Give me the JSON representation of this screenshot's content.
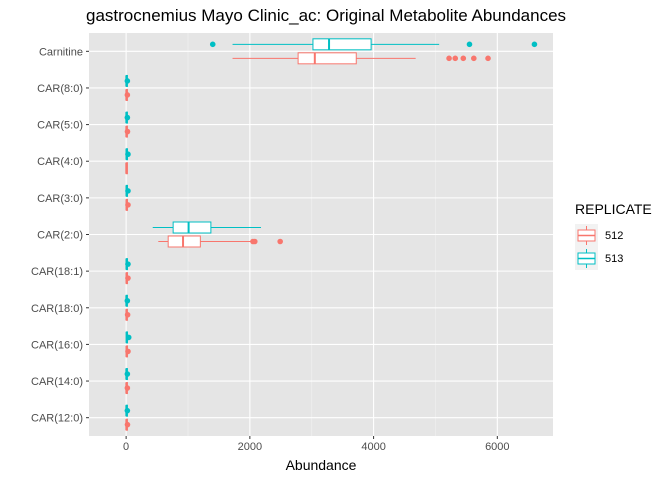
{
  "chart_data": {
    "type": "boxplot",
    "orientation": "horizontal",
    "title": "gastrocnemius Mayo Clinic_ac: Original Metabolite Abundances",
    "xlabel": "Abundance",
    "ylabel": "",
    "xlim": [
      -600,
      6900
    ],
    "x_ticks": [
      0,
      2000,
      4000,
      6000
    ],
    "x_tick_labels": [
      "0",
      "2000",
      "4000",
      "6000"
    ],
    "grid": true,
    "background": "#e5e5e5",
    "legend": {
      "title": "REPLICATE",
      "position": "right",
      "entries": [
        {
          "label": "512",
          "color": "#F8766D"
        },
        {
          "label": "513",
          "color": "#00BFC4"
        }
      ]
    },
    "categories": [
      "Carnitine",
      "CAR(8:0)",
      "CAR(5:0)",
      "CAR(4:0)",
      "CAR(3:0)",
      "CAR(2:0)",
      "CAR(18:1)",
      "CAR(18:0)",
      "CAR(16:0)",
      "CAR(14:0)",
      "CAR(12:0)"
    ],
    "series": [
      {
        "name": "512",
        "color": "#F8766D",
        "boxes": [
          {
            "category": "Carnitine",
            "whisker_low": 1720,
            "q1": 2780,
            "median": 3050,
            "q3": 3720,
            "whisker_high": 4680,
            "outliers": [
              5220,
              5320,
              5450,
              5620,
              5850
            ]
          },
          {
            "category": "CAR(8:0)",
            "whisker_low": 0,
            "q1": 2,
            "median": 4,
            "q3": 8,
            "whisker_high": 14,
            "outliers": [
              20
            ]
          },
          {
            "category": "CAR(5:0)",
            "whisker_low": 0,
            "q1": 2,
            "median": 4,
            "q3": 8,
            "whisker_high": 14,
            "outliers": [
              22
            ]
          },
          {
            "category": "CAR(4:0)",
            "whisker_low": 0,
            "q1": 2,
            "median": 3,
            "q3": 6,
            "whisker_high": 10,
            "outliers": []
          },
          {
            "category": "CAR(3:0)",
            "whisker_low": 0,
            "q1": 3,
            "median": 6,
            "q3": 12,
            "whisker_high": 20,
            "outliers": [
              30
            ]
          },
          {
            "category": "CAR(2:0)",
            "whisker_low": 520,
            "q1": 680,
            "median": 920,
            "q3": 1200,
            "whisker_high": 2020,
            "outliers": [
              2050,
              2080,
              2490
            ]
          },
          {
            "category": "CAR(18:1)",
            "whisker_low": 0,
            "q1": 3,
            "median": 6,
            "q3": 12,
            "whisker_high": 20,
            "outliers": [
              30
            ]
          },
          {
            "category": "CAR(18:0)",
            "whisker_low": 0,
            "q1": 2,
            "median": 5,
            "q3": 10,
            "whisker_high": 16,
            "outliers": [
              24
            ]
          },
          {
            "category": "CAR(16:0)",
            "whisker_low": 0,
            "q1": 3,
            "median": 6,
            "q3": 12,
            "whisker_high": 20,
            "outliers": [
              30
            ]
          },
          {
            "category": "CAR(14:0)",
            "whisker_low": 0,
            "q1": 2,
            "median": 4,
            "q3": 8,
            "whisker_high": 14,
            "outliers": [
              20
            ]
          },
          {
            "category": "CAR(12:0)",
            "whisker_low": 0,
            "q1": 2,
            "median": 4,
            "q3": 8,
            "whisker_high": 14,
            "outliers": [
              22
            ]
          }
        ]
      },
      {
        "name": "513",
        "color": "#00BFC4",
        "boxes": [
          {
            "category": "Carnitine",
            "whisker_low": 1720,
            "q1": 3020,
            "median": 3280,
            "q3": 3960,
            "whisker_high": 5060,
            "outliers": [
              1400,
              5550,
              6600
            ]
          },
          {
            "category": "CAR(8:0)",
            "whisker_low": 0,
            "q1": 2,
            "median": 4,
            "q3": 8,
            "whisker_high": 14,
            "outliers": [
              20
            ]
          },
          {
            "category": "CAR(5:0)",
            "whisker_low": 0,
            "q1": 2,
            "median": 4,
            "q3": 8,
            "whisker_high": 14,
            "outliers": [
              20
            ]
          },
          {
            "category": "CAR(4:0)",
            "whisker_low": 0,
            "q1": 3,
            "median": 6,
            "q3": 12,
            "whisker_high": 20,
            "outliers": [
              30
            ]
          },
          {
            "category": "CAR(3:0)",
            "whisker_low": 0,
            "q1": 3,
            "median": 6,
            "q3": 12,
            "whisker_high": 20,
            "outliers": [
              30
            ]
          },
          {
            "category": "CAR(2:0)",
            "whisker_low": 430,
            "q1": 760,
            "median": 1010,
            "q3": 1370,
            "whisker_high": 2180,
            "outliers": []
          },
          {
            "category": "CAR(18:1)",
            "whisker_low": 0,
            "q1": 3,
            "median": 6,
            "q3": 12,
            "whisker_high": 20,
            "outliers": [
              30
            ]
          },
          {
            "category": "CAR(18:0)",
            "whisker_low": 0,
            "q1": 2,
            "median": 4,
            "q3": 8,
            "whisker_high": 14,
            "outliers": [
              20
            ]
          },
          {
            "category": "CAR(16:0)",
            "whisker_low": 0,
            "q1": 3,
            "median": 8,
            "q3": 16,
            "whisker_high": 28,
            "outliers": [
              42
            ]
          },
          {
            "category": "CAR(14:0)",
            "whisker_low": 0,
            "q1": 2,
            "median": 4,
            "q3": 8,
            "whisker_high": 14,
            "outliers": [
              20
            ]
          },
          {
            "category": "CAR(12:0)",
            "whisker_low": 0,
            "q1": 2,
            "median": 4,
            "q3": 8,
            "whisker_high": 14,
            "outliers": [
              20
            ]
          }
        ]
      }
    ]
  }
}
